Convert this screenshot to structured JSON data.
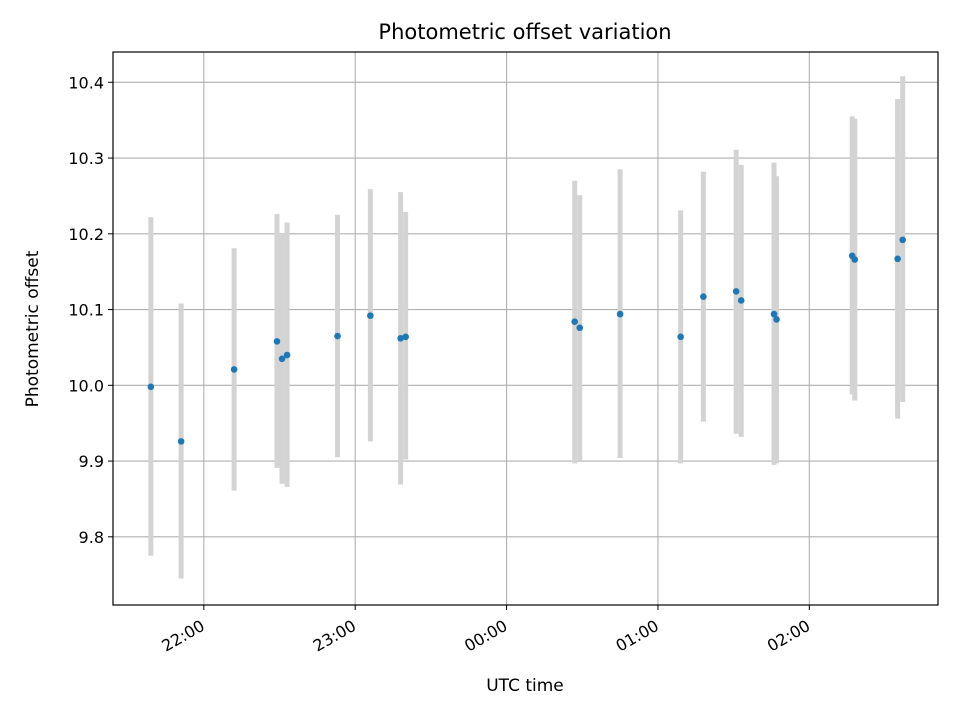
{
  "chart_data": {
    "type": "scatter",
    "title": "Photometric offset variation",
    "xlabel": "UTC time",
    "ylabel": "Photometric offset",
    "grid": true,
    "x_ticks": [
      {
        "value": "22:00",
        "label": "22:00"
      },
      {
        "value": "23:00",
        "label": "23:00"
      },
      {
        "value": "00:00",
        "label": "00:00"
      },
      {
        "value": "01:00",
        "label": "01:00"
      },
      {
        "value": "02:00",
        "label": "02:00"
      }
    ],
    "xlim": [
      "21:24",
      "02:51"
    ],
    "ylim": [
      9.71,
      10.44
    ],
    "y_ticks": [
      9.8,
      9.9,
      10.0,
      10.1,
      10.2,
      10.3,
      10.4
    ],
    "y_tick_labels": [
      "9.8",
      "9.9",
      "10.0",
      "10.1",
      "10.2",
      "10.3",
      "10.4"
    ],
    "colors": {
      "point": "#1f77b4",
      "errorbar": "#d3d3d3",
      "grid": "#b0b0b0"
    },
    "points": [
      {
        "x": "21:39",
        "y": 9.998,
        "low": 9.775,
        "high": 10.222
      },
      {
        "x": "21:51",
        "y": 9.926,
        "low": 9.745,
        "high": 10.108
      },
      {
        "x": "22:12",
        "y": 10.021,
        "low": 9.861,
        "high": 10.181
      },
      {
        "x": "22:29",
        "y": 10.058,
        "low": 9.891,
        "high": 10.226
      },
      {
        "x": "22:31",
        "y": 10.035,
        "low": 9.87,
        "high": 10.2
      },
      {
        "x": "22:33",
        "y": 10.04,
        "low": 9.866,
        "high": 10.215
      },
      {
        "x": "22:53",
        "y": 10.065,
        "low": 9.905,
        "high": 10.225
      },
      {
        "x": "23:06",
        "y": 10.092,
        "low": 9.926,
        "high": 10.259
      },
      {
        "x": "23:18",
        "y": 10.062,
        "low": 9.869,
        "high": 10.255
      },
      {
        "x": "23:20",
        "y": 10.064,
        "low": 9.902,
        "high": 10.229
      },
      {
        "x": "00:27",
        "y": 10.084,
        "low": 9.897,
        "high": 10.27
      },
      {
        "x": "00:29",
        "y": 10.076,
        "low": 9.901,
        "high": 10.251
      },
      {
        "x": "00:45",
        "y": 10.094,
        "low": 9.904,
        "high": 10.285
      },
      {
        "x": "01:09",
        "y": 10.064,
        "low": 9.897,
        "high": 10.231
      },
      {
        "x": "01:18",
        "y": 10.117,
        "low": 9.952,
        "high": 10.282
      },
      {
        "x": "01:31",
        "y": 10.124,
        "low": 9.936,
        "high": 10.311
      },
      {
        "x": "01:33",
        "y": 10.112,
        "low": 9.932,
        "high": 10.291
      },
      {
        "x": "01:46",
        "y": 10.094,
        "low": 9.895,
        "high": 10.294
      },
      {
        "x": "01:47",
        "y": 10.087,
        "low": 9.897,
        "high": 10.276
      },
      {
        "x": "02:17",
        "y": 10.171,
        "low": 9.988,
        "high": 10.355
      },
      {
        "x": "02:18",
        "y": 10.166,
        "low": 9.98,
        "high": 10.352
      },
      {
        "x": "02:35",
        "y": 10.167,
        "low": 9.956,
        "high": 10.378
      },
      {
        "x": "02:37",
        "y": 10.192,
        "low": 9.978,
        "high": 10.408
      }
    ]
  }
}
